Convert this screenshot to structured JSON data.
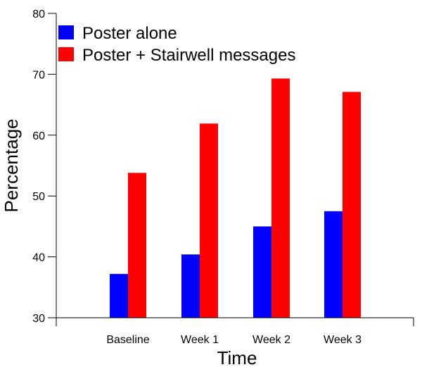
{
  "chart_data": {
    "type": "bar",
    "title": "",
    "xlabel": "Time",
    "ylabel": "Percentage",
    "categories": [
      "Baseline",
      "Week 1",
      "Week 2",
      "Week 3"
    ],
    "ylim": [
      30,
      80
    ],
    "yticks": [
      "30",
      "40",
      "50",
      "60",
      "70",
      "80"
    ],
    "grid": false,
    "legend_position": "top-left",
    "series": [
      {
        "name": "Poster alone",
        "color": "#0000ff",
        "values": [
          37.2,
          40.4,
          45.0,
          47.5
        ]
      },
      {
        "name": "Poster + Stairwell messages",
        "color": "#ff0000",
        "values": [
          53.8,
          61.9,
          69.3,
          67.1
        ]
      }
    ]
  }
}
